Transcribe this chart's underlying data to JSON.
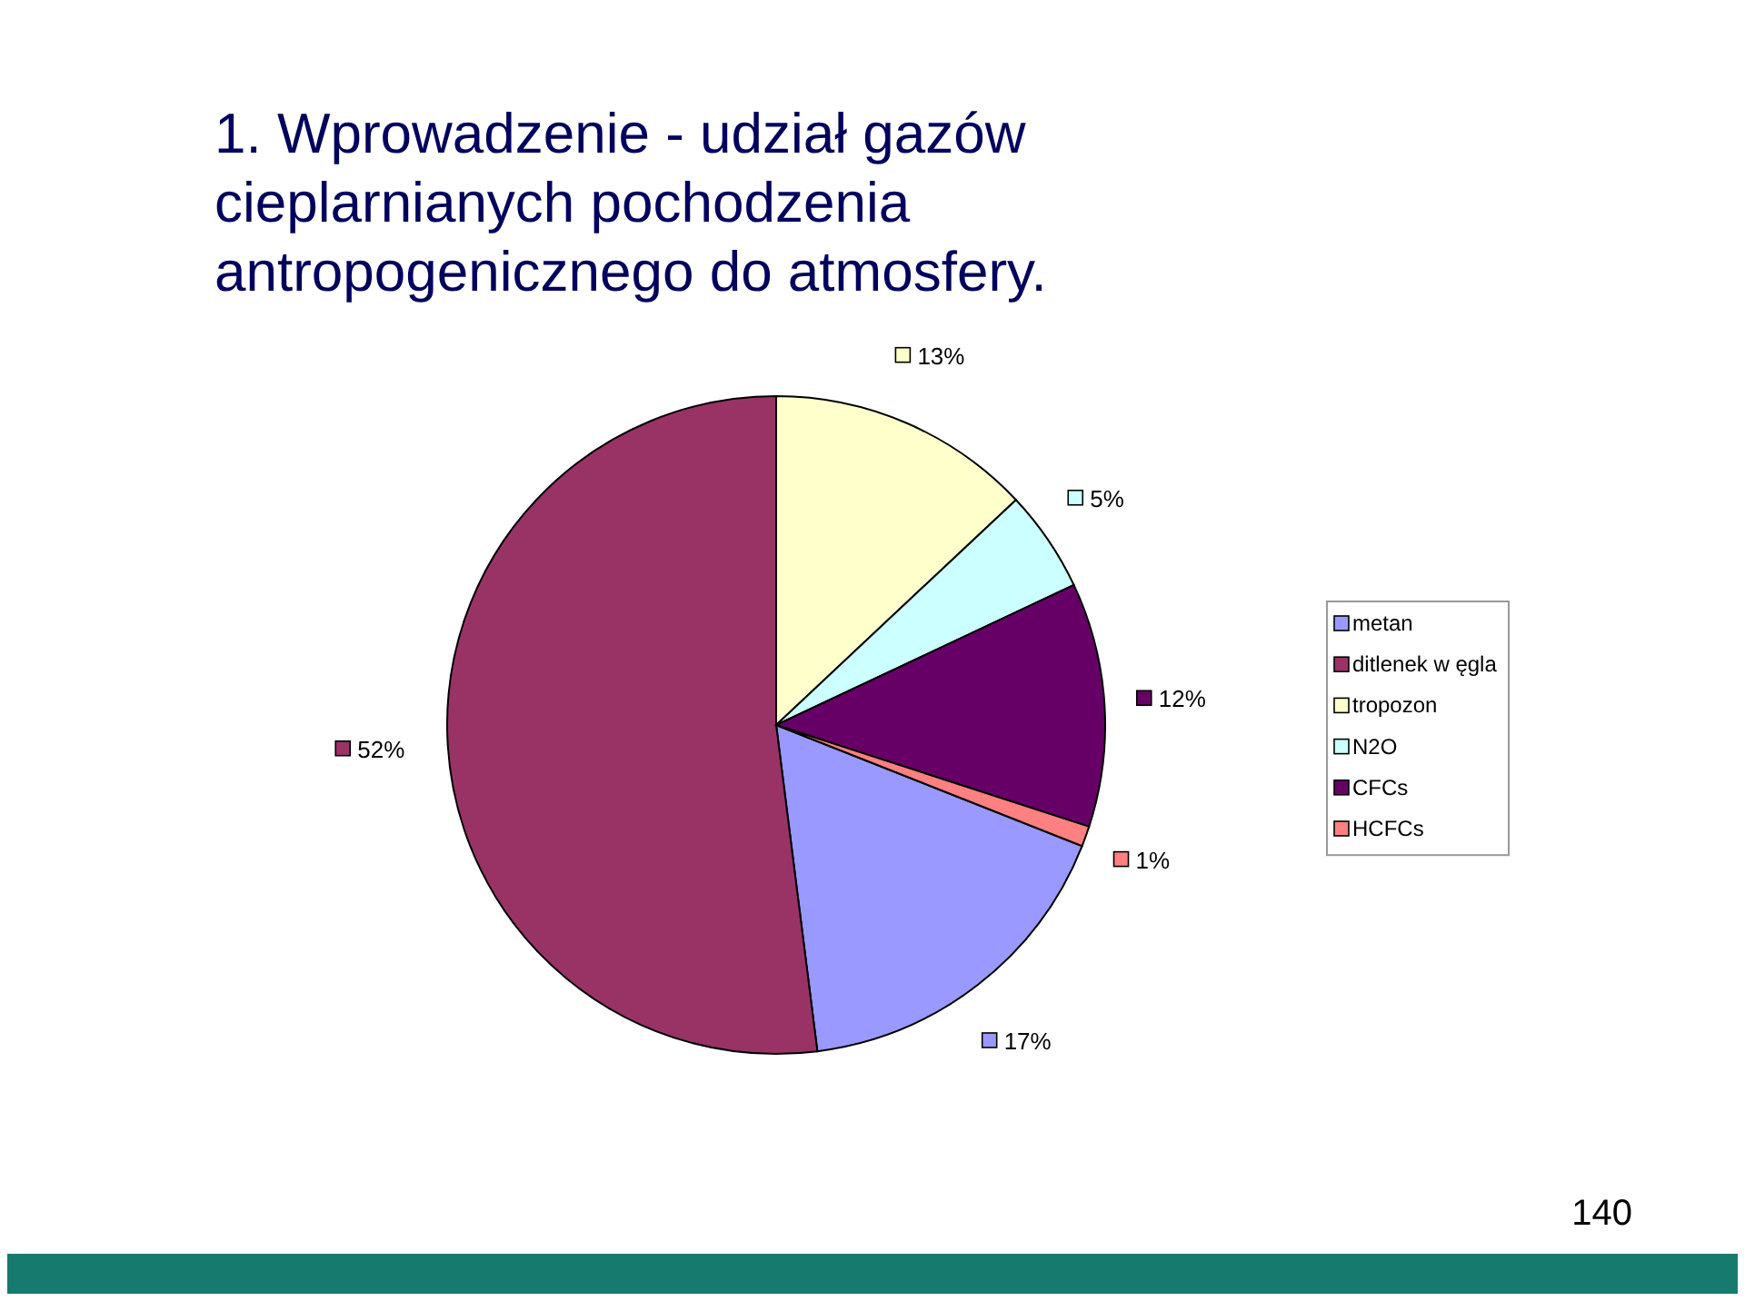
{
  "chart_data": {
    "type": "pie",
    "title": "1. Wprowadzenie - udział gazów cieplarnianych pochodzenia antropogenicznego do atmosfery.",
    "categories": [
      "metan",
      "ditlenek w ęgla",
      "tropozon",
      "N2O",
      "CFCs",
      "HCFCs"
    ],
    "values": [
      17,
      52,
      13,
      5,
      12,
      1
    ],
    "value_labels": [
      "17%",
      "52%",
      "13%",
      "5%",
      "12%",
      "1%"
    ],
    "colors": [
      "#9999ff",
      "#993366",
      "#ffffcc",
      "#ccffff",
      "#660066",
      "#ff8080"
    ],
    "legend": "right",
    "annotations": [
      "140"
    ]
  }
}
